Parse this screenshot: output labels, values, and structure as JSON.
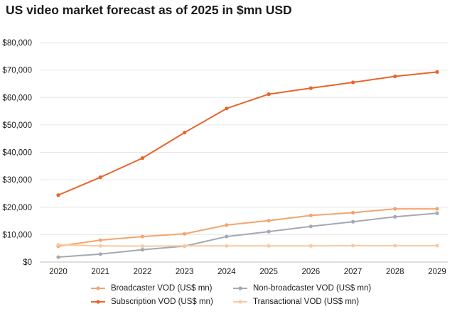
{
  "title": "US video market forecast as of 2025 in $mn USD",
  "chart_data": {
    "type": "line",
    "title": "US video market forecast as of 2025 in $mn USD",
    "x": [
      "2020",
      "2021",
      "2022",
      "2023",
      "2024",
      "2025",
      "2026",
      "2027",
      "2028",
      "2029"
    ],
    "ylim": [
      0,
      80000
    ],
    "yticks": [
      0,
      10000,
      20000,
      30000,
      40000,
      50000,
      60000,
      70000,
      80000
    ],
    "ytick_labels": [
      "$0",
      "$10,000",
      "$20,000",
      "$30,000",
      "$40,000",
      "$50,000",
      "$60,000",
      "$70,000",
      "$80,000"
    ],
    "grid": "horizontal",
    "legend_position": "bottom",
    "series": [
      {
        "name": "Broadcaster VOD (US$ mn)",
        "color": "#f4a46e",
        "values": [
          5800,
          8000,
          9300,
          10300,
          13500,
          15100,
          17000,
          18000,
          19400,
          19400
        ]
      },
      {
        "name": "Non-broadcaster VOD (US$ mn)",
        "color": "#a3a8b4",
        "values": [
          1800,
          2900,
          4500,
          5800,
          9300,
          11100,
          13000,
          14700,
          16500,
          17800
        ]
      },
      {
        "name": "Subscription VOD (US$ mn)",
        "color": "#e8642a",
        "values": [
          24400,
          30900,
          37900,
          47200,
          56000,
          61200,
          63400,
          65500,
          67700,
          69300
        ]
      },
      {
        "name": "Transactional VOD (US$ mn)",
        "color": "#f8c9a0",
        "values": [
          6300,
          5900,
          5800,
          5900,
          5900,
          5900,
          5900,
          6000,
          6000,
          6000
        ]
      }
    ]
  }
}
